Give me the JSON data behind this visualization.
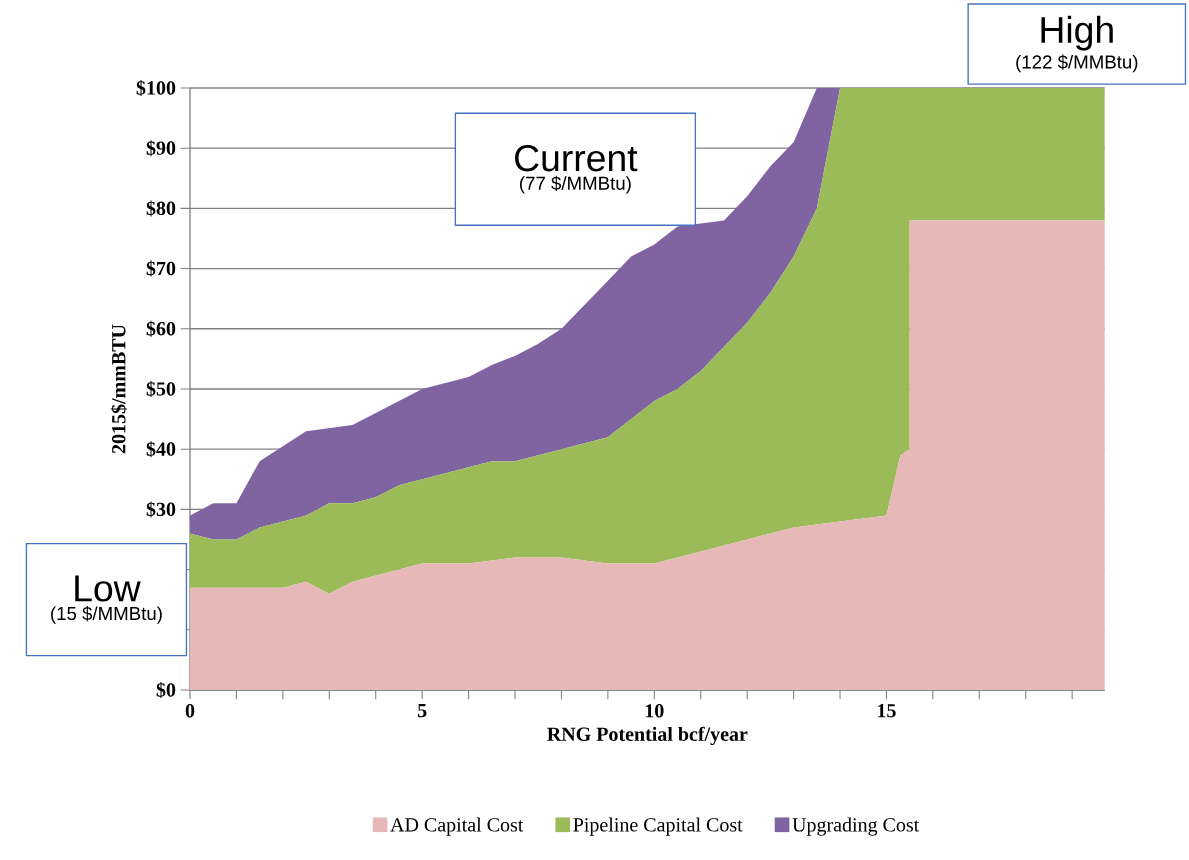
{
  "chart_data": {
    "type": "area",
    "stacked": true,
    "xlabel": "RNG Potential bcf/year",
    "ylabel": "2015$/mmBTU",
    "x": [
      0,
      0.5,
      1,
      1.5,
      2,
      2.5,
      3,
      3.5,
      4,
      4.5,
      5,
      5.5,
      6,
      6.5,
      7,
      7.5,
      8,
      8.5,
      9,
      9.5,
      10,
      10.5,
      11,
      11.5,
      12,
      12.5,
      13,
      13.5,
      14,
      14.5,
      15,
      15.3,
      15.5,
      15.5,
      19.7
    ],
    "series": [
      {
        "name": "AD Capital Cost",
        "color": "#e6b9b8",
        "values": [
          17,
          17,
          17,
          17,
          17,
          18,
          16,
          18,
          19,
          20,
          21,
          21,
          21,
          21.5,
          22,
          22,
          22,
          21.5,
          21,
          21,
          21,
          22,
          23,
          24,
          25,
          26,
          27,
          27.5,
          28,
          28.5,
          29,
          39,
          40,
          78,
          78
        ]
      },
      {
        "name": "Pipeline Capital Cost",
        "color": "#9bbb59",
        "values": [
          9,
          8,
          8,
          10,
          11,
          11,
          15,
          13,
          13,
          14,
          14,
          15,
          16,
          16.5,
          16,
          17,
          18,
          19.5,
          21,
          24,
          27,
          28,
          30,
          33,
          36,
          40,
          45,
          52.5,
          72,
          71.5,
          71,
          61,
          60,
          22,
          22
        ]
      },
      {
        "name": "Upgrading Cost",
        "color": "#8064a2",
        "values": [
          3,
          6,
          6,
          11,
          12.5,
          14,
          12.5,
          13,
          14,
          14,
          15,
          15,
          15,
          16,
          17.5,
          18.5,
          20,
          23,
          26,
          27,
          26,
          27,
          24.5,
          21,
          21,
          21,
          19,
          20,
          0,
          0,
          0,
          0,
          0,
          0,
          0
        ]
      }
    ],
    "xlim": [
      0,
      19.7
    ],
    "ylim": [
      0,
      100
    ],
    "xticks": [
      0,
      {
        "value": 1,
        "label": null
      },
      {
        "value": 2,
        "label": null
      },
      {
        "value": 3,
        "label": null
      },
      {
        "value": 4,
        "label": null
      },
      5,
      {
        "value": 6,
        "label": null
      },
      {
        "value": 7,
        "label": null
      },
      {
        "value": 8,
        "label": null
      },
      {
        "value": 9,
        "label": null
      },
      10,
      {
        "value": 11,
        "label": null
      },
      {
        "value": 12,
        "label": null
      },
      {
        "value": 13,
        "label": null
      },
      {
        "value": 14,
        "label": null
      },
      15,
      {
        "value": 16,
        "label": null
      },
      {
        "value": 17,
        "label": null
      },
      {
        "value": 18,
        "label": null
      },
      {
        "value": 19,
        "label": null
      }
    ],
    "yticks": [
      {
        "value": 0,
        "label": "$0"
      },
      {
        "value": 10,
        "label": null
      },
      {
        "value": 20,
        "label": null
      },
      {
        "value": 30,
        "label": "$30"
      },
      {
        "value": 40,
        "label": "$40"
      },
      {
        "value": 50,
        "label": "$50"
      },
      {
        "value": 60,
        "label": "$60"
      },
      {
        "value": 70,
        "label": "$70"
      },
      {
        "value": 80,
        "label": "$80"
      },
      {
        "value": 90,
        "label": "$90"
      },
      {
        "value": 100,
        "label": "$100"
      }
    ],
    "grid": "y",
    "legend": "bottom",
    "annotations": [
      "High",
      "(122 $/MMBtu)",
      "Current",
      "(77 $/MMBtu)",
      "Low",
      "(15 $/MMBtu)"
    ]
  }
}
